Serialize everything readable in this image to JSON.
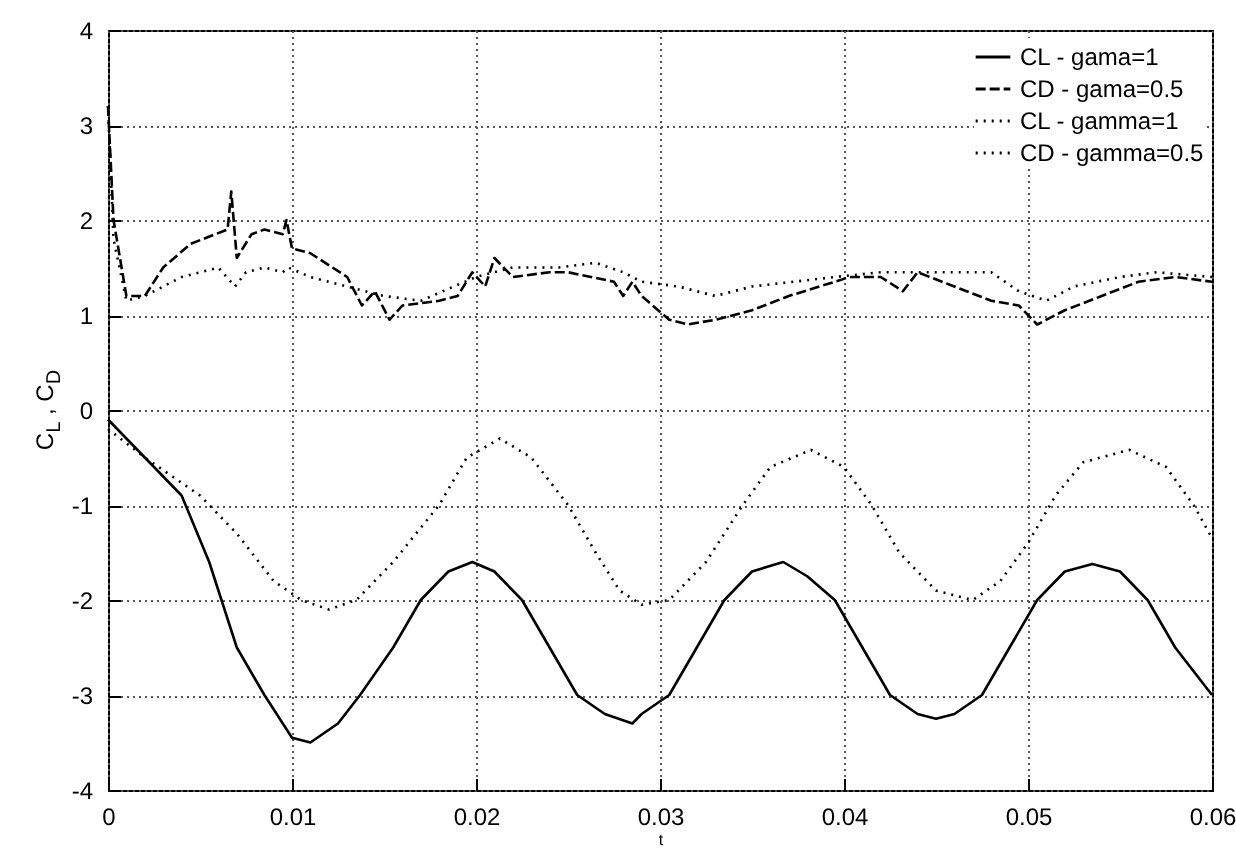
{
  "chart_data": {
    "type": "line",
    "xlabel": "t",
    "ylabel": "C$_{L}$ , C$_{D}$",
    "xlim": [
      0,
      0.06
    ],
    "xticks": [
      0,
      0.01,
      0.02,
      0.03,
      0.04,
      0.05,
      0.06
    ],
    "ylim": [
      -4,
      4
    ],
    "yticks": [
      -4,
      -3,
      -2,
      -1,
      0,
      1,
      2,
      3,
      4
    ],
    "grid": true,
    "legend": "top right",
    "marker": "none",
    "series": [
      {
        "name": "CL - gama=1",
        "color": "#000000",
        "line_style": "solid",
        "x": [
          0,
          0.002,
          0.004,
          0.0055,
          0.007,
          0.0085,
          0.01,
          0.011,
          0.0125,
          0.0137,
          0.0155,
          0.017,
          0.0185,
          0.0198,
          0.021,
          0.0225,
          0.024,
          0.0255,
          0.027,
          0.0285,
          0.029,
          0.0305,
          0.032,
          0.0335,
          0.035,
          0.0367,
          0.038,
          0.0395,
          0.041,
          0.0425,
          0.044,
          0.045,
          0.046,
          0.0475,
          0.049,
          0.0505,
          0.052,
          0.0535,
          0.055,
          0.0565,
          0.058,
          0.06
        ],
        "values": [
          -0.1,
          -0.5,
          -0.9,
          -1.6,
          -2.5,
          -3.0,
          -3.45,
          -3.5,
          -3.3,
          -3.0,
          -2.5,
          -2.0,
          -1.7,
          -1.6,
          -1.7,
          -2.0,
          -2.5,
          -3.0,
          -3.2,
          -3.3,
          -3.2,
          -3.0,
          -2.5,
          -2.0,
          -1.7,
          -1.6,
          -1.75,
          -2.0,
          -2.5,
          -3.0,
          -3.2,
          -3.25,
          -3.2,
          -3.0,
          -2.5,
          -2.0,
          -1.7,
          -1.62,
          -1.7,
          -2.0,
          -2.5,
          -3.0
        ]
      },
      {
        "name": "CD - gama=0.5",
        "color": "#000000",
        "line_style": "dashed",
        "x": [
          0,
          0.0003,
          0.001,
          0.002,
          0.003,
          0.0045,
          0.0065,
          0.0067,
          0.007,
          0.0078,
          0.0085,
          0.0095,
          0.0097,
          0.01,
          0.011,
          0.013,
          0.0138,
          0.0145,
          0.0153,
          0.016,
          0.018,
          0.019,
          0.0198,
          0.0205,
          0.021,
          0.022,
          0.024,
          0.025,
          0.0275,
          0.028,
          0.0285,
          0.029,
          0.0305,
          0.0315,
          0.033,
          0.035,
          0.037,
          0.0395,
          0.0403,
          0.042,
          0.0432,
          0.044,
          0.046,
          0.048,
          0.0495,
          0.0505,
          0.052,
          0.054,
          0.056,
          0.058,
          0.06
        ],
        "values": [
          3.2,
          2.0,
          1.2,
          1.2,
          1.5,
          1.75,
          1.9,
          2.3,
          1.6,
          1.85,
          1.9,
          1.85,
          2.0,
          1.7,
          1.65,
          1.4,
          1.1,
          1.25,
          0.95,
          1.1,
          1.15,
          1.2,
          1.45,
          1.3,
          1.6,
          1.4,
          1.45,
          1.45,
          1.35,
          1.2,
          1.35,
          1.2,
          0.95,
          0.9,
          0.95,
          1.05,
          1.2,
          1.35,
          1.4,
          1.4,
          1.25,
          1.45,
          1.3,
          1.15,
          1.1,
          0.9,
          1.05,
          1.2,
          1.35,
          1.4,
          1.35
        ]
      },
      {
        "name": "CL - gamma=1",
        "color": "#000000",
        "line_style": "dotted",
        "x": [
          0,
          0.002,
          0.005,
          0.007,
          0.009,
          0.0105,
          0.012,
          0.0135,
          0.0155,
          0.018,
          0.0195,
          0.0213,
          0.023,
          0.025,
          0.0265,
          0.0278,
          0.029,
          0.0305,
          0.0325,
          0.0345,
          0.036,
          0.0382,
          0.04,
          0.0415,
          0.043,
          0.045,
          0.047,
          0.0485,
          0.05,
          0.0515,
          0.053,
          0.0555,
          0.0575,
          0.059,
          0.06
        ],
        "values": [
          -0.2,
          -0.5,
          -0.9,
          -1.3,
          -1.8,
          -2.0,
          -2.1,
          -2.0,
          -1.6,
          -1.0,
          -0.5,
          -0.3,
          -0.5,
          -1.0,
          -1.5,
          -1.9,
          -2.05,
          -2.0,
          -1.6,
          -1.0,
          -0.6,
          -0.42,
          -0.6,
          -1.0,
          -1.5,
          -1.9,
          -2.0,
          -1.8,
          -1.4,
          -0.9,
          -0.55,
          -0.42,
          -0.6,
          -1.0,
          -1.35
        ]
      },
      {
        "name": "CD - gamma=0.5",
        "color": "#000000",
        "line_style": "dotted",
        "x": [
          0,
          0.0003,
          0.001,
          0.002,
          0.004,
          0.006,
          0.0069,
          0.0075,
          0.0085,
          0.0095,
          0.0098,
          0.011,
          0.013,
          0.015,
          0.017,
          0.02,
          0.022,
          0.0245,
          0.0265,
          0.028,
          0.029,
          0.031,
          0.033,
          0.035,
          0.0395,
          0.042,
          0.0435,
          0.046,
          0.048,
          0.0495,
          0.051,
          0.0525,
          0.055,
          0.057,
          0.06
        ],
        "values": [
          3.2,
          1.8,
          1.15,
          1.2,
          1.4,
          1.5,
          1.3,
          1.45,
          1.5,
          1.45,
          1.5,
          1.4,
          1.3,
          1.2,
          1.15,
          1.4,
          1.5,
          1.5,
          1.55,
          1.45,
          1.35,
          1.3,
          1.2,
          1.3,
          1.4,
          1.45,
          1.45,
          1.45,
          1.45,
          1.25,
          1.15,
          1.3,
          1.4,
          1.45,
          1.4
        ]
      }
    ]
  }
}
